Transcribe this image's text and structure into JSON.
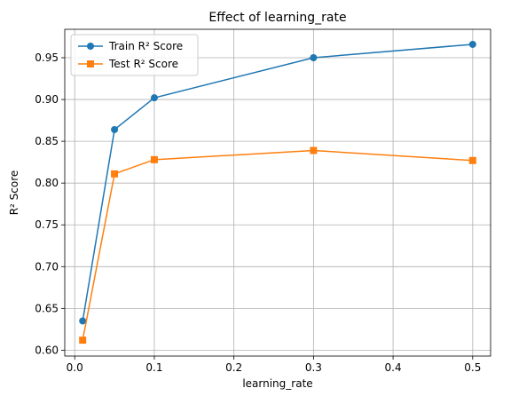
{
  "chart_data": {
    "type": "line",
    "title": "Effect of learning_rate",
    "xlabel": "learning_rate",
    "ylabel": "R² Score",
    "xlim": [
      -0.0125,
      0.5225
    ],
    "ylim": [
      0.593,
      0.984
    ],
    "xticks": [
      0.0,
      0.1,
      0.2,
      0.3,
      0.4,
      0.5
    ],
    "xtick_labels": [
      "0.0",
      "0.1",
      "0.2",
      "0.3",
      "0.4",
      "0.5"
    ],
    "yticks": [
      0.6,
      0.65,
      0.7,
      0.75,
      0.8,
      0.85,
      0.9,
      0.95
    ],
    "ytick_labels": [
      "0.60",
      "0.65",
      "0.70",
      "0.75",
      "0.80",
      "0.85",
      "0.90",
      "0.95"
    ],
    "grid": true,
    "legend": "top-left",
    "x": [
      0.01,
      0.05,
      0.1,
      0.3,
      0.5
    ],
    "series": [
      {
        "name": "Train R² Score",
        "values": [
          0.635,
          0.864,
          0.902,
          0.95,
          0.966
        ],
        "color": "#1f77b4",
        "marker": "circle"
      },
      {
        "name": "Test R² Score",
        "values": [
          0.612,
          0.811,
          0.828,
          0.839,
          0.827
        ],
        "color": "#ff7f0e",
        "marker": "square"
      }
    ]
  }
}
